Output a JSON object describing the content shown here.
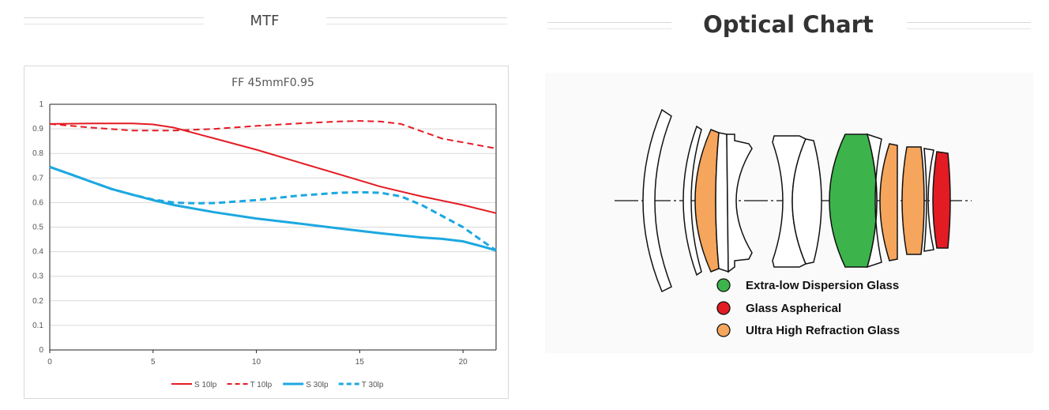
{
  "header": {
    "mtf_heading": "MTF",
    "optical_heading": "Optical Chart"
  },
  "chart_data": {
    "type": "line",
    "title": "FF 45mmF0.95",
    "xlabel": "",
    "ylabel": "",
    "xlim": [
      0,
      21.6
    ],
    "ylim": [
      0,
      1
    ],
    "xticks": [
      0,
      5,
      10,
      15,
      20
    ],
    "yticks": [
      0,
      0.1,
      0.2,
      0.3,
      0.4,
      0.5,
      0.6,
      0.7,
      0.8,
      0.9,
      1
    ],
    "grid": "horizontal",
    "legend": "bottom",
    "series": [
      {
        "name": "S 10lp",
        "color": "#e31b23",
        "style": "solid",
        "x": [
          0,
          2,
          4,
          5,
          6,
          8,
          10,
          12,
          14,
          16,
          18,
          20,
          21.6
        ],
        "y": [
          0.92,
          0.922,
          0.922,
          0.918,
          0.905,
          0.86,
          0.815,
          0.765,
          0.715,
          0.665,
          0.625,
          0.59,
          0.557
        ]
      },
      {
        "name": "T 10lp",
        "color": "#e31b23",
        "style": "dashed",
        "x": [
          0,
          2,
          4,
          6,
          8,
          10,
          12,
          14,
          15,
          16,
          17,
          18,
          19,
          20,
          21.6
        ],
        "y": [
          0.92,
          0.905,
          0.893,
          0.893,
          0.9,
          0.912,
          0.922,
          0.93,
          0.932,
          0.93,
          0.92,
          0.89,
          0.86,
          0.845,
          0.82
        ]
      },
      {
        "name": "S 30lp",
        "color": "#1ca8e0",
        "style": "solid",
        "x": [
          0,
          1,
          2,
          3,
          4,
          5,
          6,
          8,
          10,
          12,
          14,
          16,
          18,
          19,
          20,
          21,
          21.6
        ],
        "y": [
          0.745,
          0.715,
          0.685,
          0.655,
          0.632,
          0.61,
          0.59,
          0.56,
          0.535,
          0.515,
          0.495,
          0.475,
          0.458,
          0.452,
          0.442,
          0.42,
          0.405
        ]
      },
      {
        "name": "T 30lp",
        "color": "#1ca8e0",
        "style": "dashed",
        "x": [
          0,
          1,
          2,
          3,
          4,
          5,
          6,
          7,
          8,
          10,
          12,
          14,
          15,
          16,
          17,
          18,
          19,
          20,
          21,
          21.6
        ],
        "y": [
          0.745,
          0.715,
          0.685,
          0.655,
          0.632,
          0.612,
          0.6,
          0.597,
          0.598,
          0.61,
          0.628,
          0.64,
          0.642,
          0.64,
          0.625,
          0.59,
          0.545,
          0.5,
          0.44,
          0.405
        ]
      }
    ]
  },
  "optical_chart": {
    "legend": [
      {
        "label": "Extra-low Dispersion Glass",
        "color": "#3cb44b",
        "icon": "green-dot-icon"
      },
      {
        "label": "Glass Aspherical",
        "color": "#e31b23",
        "icon": "red-dot-icon"
      },
      {
        "label": "Ultra High Refraction Glass",
        "color": "#f5a55c",
        "icon": "orange-dot-icon"
      }
    ]
  }
}
